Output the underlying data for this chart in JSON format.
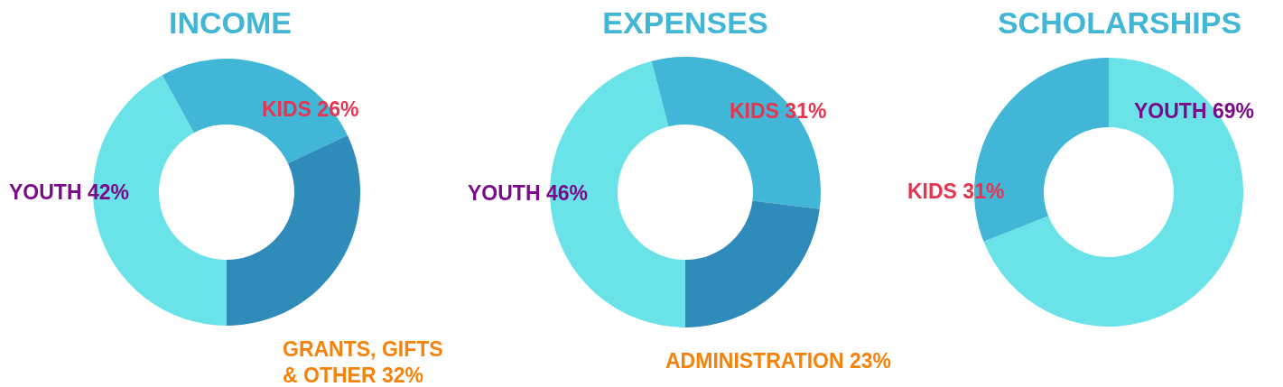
{
  "chart_data": [
    {
      "type": "donut",
      "title": "INCOME",
      "categories": [
        "YOUTH",
        "KIDS",
        "GRANTS, GIFTS & OTHER"
      ],
      "values": [
        42,
        26,
        32
      ],
      "value_labels": [
        "42%",
        "26%",
        "32%"
      ],
      "colors": [
        "#6ae3e8",
        "#41b6d6",
        "#2e8bba"
      ]
    },
    {
      "type": "donut",
      "title": "EXPENSES",
      "categories": [
        "YOUTH",
        "KIDS",
        "ADMINISTRATION"
      ],
      "values": [
        46,
        31,
        23
      ],
      "value_labels": [
        "46%",
        "31%",
        "23%"
      ],
      "colors": [
        "#6ae3e8",
        "#41b6d6",
        "#2e8bba"
      ]
    },
    {
      "type": "donut",
      "title": "SCHOLARSHIPS",
      "categories": [
        "YOUTH",
        "KIDS"
      ],
      "values": [
        69,
        31
      ],
      "value_labels": [
        "69%",
        "31%"
      ],
      "colors": [
        "#6ae3e8",
        "#41b6d6"
      ]
    }
  ]
}
